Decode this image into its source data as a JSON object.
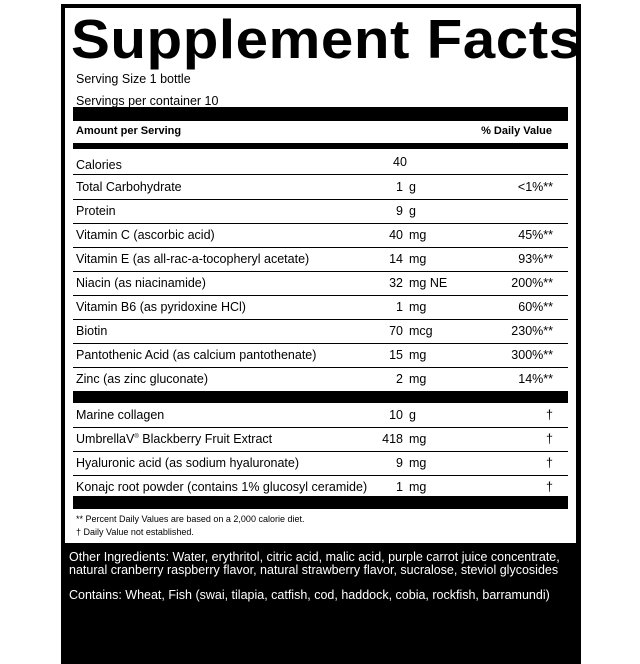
{
  "title": "Supplement Facts",
  "serving_size": "Serving Size 1 bottle",
  "servings_per_container": "Servings per container 10",
  "header": {
    "amount": "Amount per Serving",
    "dv": "% Daily Value"
  },
  "calories": {
    "name": "Calories",
    "amount": "40"
  },
  "nutrients": [
    {
      "name": "Total Carbohydrate",
      "amount": "1",
      "unit": "g",
      "dv": "<1%**"
    },
    {
      "name": "Protein",
      "amount": "9",
      "unit": "g",
      "dv": ""
    },
    {
      "name": "Vitamin C (ascorbic acid)",
      "amount": "40",
      "unit": "mg",
      "dv": "45%**"
    },
    {
      "name": "Vitamin E (as all-rac-a-tocopheryl acetate)",
      "amount": "14",
      "unit": "mg",
      "dv": "93%**"
    },
    {
      "name": "Niacin (as niacinamide)",
      "amount": "32",
      "unit": "mg NE",
      "dv": "200%**"
    },
    {
      "name": "Vitamin B6 (as pyridoxine HCl)",
      "amount": "1",
      "unit": "mg",
      "dv": "60%**"
    },
    {
      "name": "Biotin",
      "amount": "70",
      "unit": "mcg",
      "dv": "230%**"
    },
    {
      "name": "Pantothenic Acid (as calcium pantothenate)",
      "amount": "15",
      "unit": "mg",
      "dv": "300%**"
    },
    {
      "name": "Zinc (as zinc gluconate)",
      "amount": "2",
      "unit": "mg",
      "dv": "14%**"
    }
  ],
  "other_actives": [
    {
      "name": "Marine collagen",
      "amount": "10",
      "unit": "g",
      "dv": "†"
    },
    {
      "name": "UmbrellaV",
      "sup": "®",
      "name2": " Blackberry Fruit Extract",
      "amount": "418",
      "unit": "mg",
      "dv": "†"
    },
    {
      "name": "Hyaluronic acid (as sodium hyaluronate)",
      "amount": "9",
      "unit": "mg",
      "dv": "†"
    },
    {
      "name": "Konajc root powder (contains 1% glucosyl ceramide)",
      "amount": "1",
      "unit": "mg",
      "dv": "†"
    }
  ],
  "footnotes": [
    "** Percent Daily Values are based on a 2,000 calorie diet.",
    "† Daily Value not established."
  ],
  "other_ingredients": "Other Ingredients: Water, erythritol, citric acid, malic acid, purple carrot juice concentrate, natural cranberry raspberry flavor, natural strawberry flavor, sucralose, steviol glycosides",
  "contains": "Contains: Wheat, Fish (swai, tilapia, catfish, cod, haddock, cobia, rockfish, barramundi)"
}
